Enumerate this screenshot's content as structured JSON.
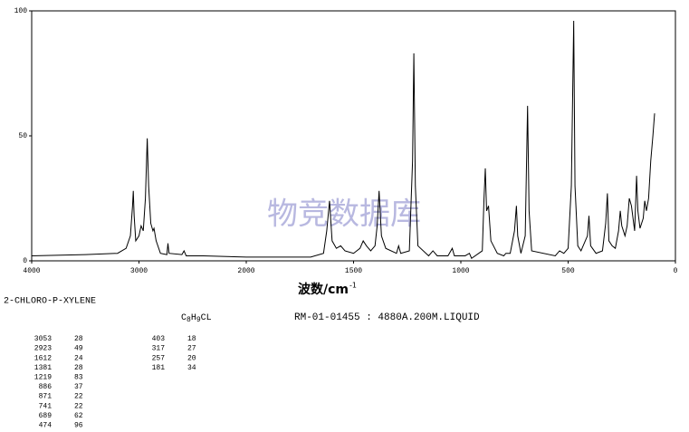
{
  "chart_data": {
    "type": "line",
    "x_label": "波数/cm",
    "x_label_sup": "-1",
    "watermark": "物竞数据库",
    "compound": "2-CHLORO-P-XYLENE",
    "formula": [
      "C",
      "8",
      "H",
      "9",
      "CL"
    ],
    "sample_info": "RM-01-01455 : 4880A.200M.LIQUID",
    "color": "#000000",
    "xlim": [
      4000,
      0
    ],
    "ylim": [
      0,
      100
    ],
    "xticks": [
      4000,
      3000,
      2000,
      1500,
      1000,
      500,
      0
    ],
    "yticks": [
      0,
      50,
      100
    ],
    "x": [
      4000,
      3500,
      3200,
      3120,
      3080,
      3060,
      3053,
      3045,
      3030,
      3000,
      2980,
      2960,
      2940,
      2923,
      2910,
      2890,
      2870,
      2860,
      2840,
      2800,
      2740,
      2730,
      2720,
      2600,
      2580,
      2560,
      2400,
      2000,
      1700,
      1640,
      1625,
      1612,
      1600,
      1580,
      1560,
      1540,
      1500,
      1470,
      1455,
      1440,
      1420,
      1400,
      1390,
      1381,
      1370,
      1350,
      1300,
      1290,
      1280,
      1240,
      1225,
      1219,
      1212,
      1200,
      1150,
      1130,
      1110,
      1060,
      1040,
      1030,
      980,
      960,
      950,
      900,
      892,
      886,
      880,
      871,
      860,
      830,
      800,
      790,
      770,
      750,
      741,
      735,
      720,
      700,
      689,
      682,
      670,
      560,
      540,
      520,
      500,
      485,
      474,
      468,
      455,
      440,
      410,
      403,
      395,
      370,
      340,
      325,
      317,
      310,
      295,
      280,
      265,
      257,
      250,
      235,
      225,
      215,
      205,
      190,
      181,
      175,
      165,
      150,
      143,
      135,
      125,
      115,
      105,
      97
    ],
    "values": [
      2,
      2.5,
      3,
      5,
      10,
      22,
      28,
      18,
      8,
      10,
      14,
      12,
      25,
      49,
      30,
      15,
      12,
      13,
      8,
      3,
      2.5,
      7,
      3,
      2.5,
      4,
      2,
      2,
      1.5,
      1.5,
      3,
      12,
      24,
      8,
      5,
      6,
      4,
      3,
      5,
      8,
      6,
      4,
      6,
      14,
      28,
      10,
      5,
      3,
      6,
      3,
      4,
      40,
      83,
      30,
      6,
      2,
      4,
      2,
      2,
      5,
      2,
      2,
      3,
      1,
      4,
      25,
      37,
      20,
      22,
      8,
      3,
      2,
      3,
      3,
      12,
      22,
      10,
      3,
      10,
      62,
      20,
      4,
      2,
      4,
      3,
      5,
      30,
      96,
      30,
      6,
      4,
      10,
      18,
      6,
      3,
      4,
      15,
      27,
      8,
      6,
      5,
      12,
      20,
      14,
      10,
      14,
      25,
      22,
      12,
      34,
      20,
      13,
      17,
      24,
      20,
      25,
      40,
      50,
      59
    ],
    "peaks": [
      [
        3053,
        28
      ],
      [
        2923,
        49
      ],
      [
        1612,
        24
      ],
      [
        1381,
        28
      ],
      [
        1219,
        83
      ],
      [
        886,
        37
      ],
      [
        871,
        22
      ],
      [
        741,
        22
      ],
      [
        689,
        62
      ],
      [
        474,
        96
      ],
      [
        403,
        18
      ],
      [
        317,
        27
      ],
      [
        257,
        20
      ],
      [
        181,
        34
      ]
    ]
  }
}
